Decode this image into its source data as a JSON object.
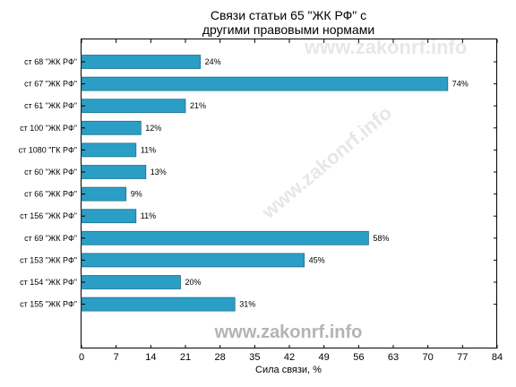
{
  "chart_data": {
    "type": "bar",
    "orientation": "horizontal",
    "title": "Связи статьи 65 \"ЖК РФ\" с другими правовыми нормами",
    "title_lines": [
      "Связи статьи 65 \"ЖК РФ\" с",
      "другими правовыми нормами"
    ],
    "xlabel": "Сила связи, %",
    "ylabel": "",
    "categories": [
      "ст 68 \"ЖК РФ\"",
      "ст 67 \"ЖК РФ\"",
      "ст 61 \"ЖК РФ\"",
      "ст 100 \"ЖК РФ\"",
      "ст 1080 \"ГК РФ\"",
      "ст 60 \"ЖК РФ\"",
      "ст 66 \"ЖК РФ\"",
      "ст 156 \"ЖК РФ\"",
      "ст 69 \"ЖК РФ\"",
      "ст 153 \"ЖК РФ\"",
      "ст 154 \"ЖК РФ\"",
      "ст 155 \"ЖК РФ\""
    ],
    "values": [
      24,
      74,
      21,
      12,
      11,
      13,
      9,
      11,
      58,
      45,
      20,
      31
    ],
    "data_labels": [
      "24%",
      "74%",
      "21%",
      "12%",
      "11%",
      "13%",
      "9%",
      "11%",
      "58%",
      "45%",
      "20%",
      "31%"
    ],
    "xlim": [
      0,
      84
    ],
    "xticks": [
      0,
      7,
      14,
      21,
      28,
      35,
      42,
      49,
      56,
      63,
      70,
      77,
      84
    ],
    "grid": false,
    "bar_color": "#2b9ec6",
    "bar_edge_color": "#1d6f8c"
  },
  "watermark": {
    "text": "www.zakonrf.info",
    "color": "#b4b4b4"
  }
}
